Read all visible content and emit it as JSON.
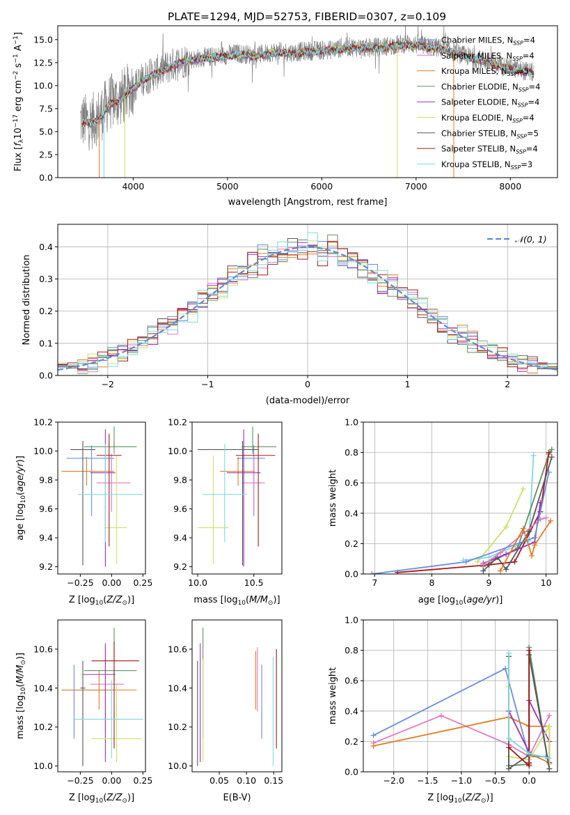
{
  "figure": {
    "title": "PLATE=1294, MJD=52753, FIBERID=0307, z=0.109"
  },
  "colors": {
    "ChabrierMILES": "#6a8ddb",
    "SalpeterMILES": "#e377c2",
    "KroupaMILES": "#e07b24",
    "ChabrierELODIE": "#5e8f5e",
    "SalpeterELODIE": "#9a32b8",
    "KroupaELODIE": "#cfe06a",
    "ChabrierSTELIB": "#555555",
    "SalpeterSTELIB": "#a31818",
    "KroupaSTELIB": "#7fd9dd",
    "normal_curve": "#5b8bd0",
    "grid": "#b0b0b0"
  },
  "chart_data": [
    {
      "id": "spectrum",
      "type": "line",
      "xlabel": "wavelength [Angstrom, rest frame]",
      "ylabel": "Flux [f_λ 10^-17 erg cm^-2 s^-1 A^-1]",
      "xlim": [
        3200,
        8500
      ],
      "ylim": [
        0,
        16.5
      ],
      "xticks": [
        4000,
        5000,
        6000,
        7000,
        8000
      ],
      "yticks": [
        0.0,
        2.5,
        5.0,
        7.5,
        10.0,
        12.5,
        15.0
      ],
      "grid": false,
      "legend_position": "right",
      "legend": [
        {
          "key": "ChabrierMILES",
          "name": "Chabrier MILES",
          "nssp": "4"
        },
        {
          "key": "SalpeterMILES",
          "name": "Salpeter MILES",
          "nssp": "4"
        },
        {
          "key": "KroupaMILES",
          "name": "Kroupa MILES",
          "nssp": "5"
        },
        {
          "key": "ChabrierELODIE",
          "name": "Chabrier ELODIE",
          "nssp": "4"
        },
        {
          "key": "SalpeterELODIE",
          "name": "Salpeter ELODIE",
          "nssp": "4"
        },
        {
          "key": "KroupaELODIE",
          "name": "Kroupa ELODIE",
          "nssp": "4"
        },
        {
          "key": "ChabrierSTELIB",
          "name": "Chabrier STELIB",
          "nssp": "5"
        },
        {
          "key": "SalpeterSTELIB",
          "name": "Salpeter STELIB",
          "nssp": "4"
        },
        {
          "key": "KroupaSTELIB",
          "name": "Kroupa STELIB",
          "nssp": "3"
        }
      ],
      "data_envelope": {
        "x": [
          3440,
          3550,
          3650,
          3750,
          3850,
          3950,
          4100,
          4300,
          4500,
          4700,
          4900,
          5100,
          5300,
          5500,
          5700,
          5900,
          6100,
          6300,
          6500,
          6700,
          6900,
          7100,
          7300,
          7500,
          7700,
          7900,
          8100,
          8250
        ],
        "y": [
          6.2,
          6.0,
          6.8,
          8.2,
          8.5,
          9.4,
          10.7,
          11.7,
          12.6,
          13.0,
          13.2,
          13.5,
          13.3,
          13.7,
          13.6,
          13.8,
          13.9,
          14.2,
          14.1,
          14.3,
          14.6,
          14.3,
          14.0,
          13.3,
          12.8,
          12.2,
          11.7,
          11.4
        ],
        "noise": 1.2
      },
      "model_envelope": {
        "x": [
          3440,
          3550,
          3650,
          3750,
          3850,
          3950,
          4100,
          4300,
          4500,
          4700,
          4900,
          5100,
          5300,
          5500,
          5700,
          5900,
          6100,
          6300,
          6500,
          6700,
          6900,
          7100,
          7300,
          7500,
          7700,
          7900,
          8100,
          8250
        ],
        "y": [
          6.0,
          5.9,
          6.5,
          8.0,
          8.3,
          9.2,
          10.6,
          11.6,
          12.5,
          12.9,
          13.1,
          13.4,
          13.2,
          13.6,
          13.5,
          13.7,
          13.8,
          14.1,
          14.0,
          14.2,
          14.5,
          14.2,
          13.9,
          13.2,
          12.7,
          12.1,
          11.6,
          11.3
        ]
      }
    },
    {
      "id": "residuals",
      "type": "histogram",
      "xlabel": "(data-model)/error",
      "ylabel": "Normed distribution",
      "xlim": [
        -2.5,
        2.5
      ],
      "ylim": [
        0,
        0.47
      ],
      "xticks": [
        -2,
        -1,
        0,
        1,
        2
      ],
      "yticks": [
        0.0,
        0.1,
        0.2,
        0.3,
        0.4
      ],
      "grid": true,
      "legend_position": "top-right",
      "curve_label": "𝒩(0, 1)",
      "bin_width": 0.1
    },
    {
      "id": "age_vs_Z",
      "type": "errorbar",
      "xlabel": "Z [log10(Z/Z⊙)]",
      "ylabel": "age  [log10(age/yr)]",
      "xlim": [
        -0.43,
        0.27
      ],
      "ylim": [
        9.15,
        10.2
      ],
      "xticks": [
        -0.25,
        0.0,
        0.25
      ],
      "yticks": [
        9.2,
        9.4,
        9.6,
        9.8,
        10.0,
        10.2
      ],
      "points": [
        {
          "key": "ChabrierMILES",
          "x": -0.16,
          "xerr": [
            0.2,
            0.18
          ],
          "y": 9.95,
          "yerr": [
            0.4,
            0.09
          ]
        },
        {
          "key": "SalpeterMILES",
          "x": 0.0,
          "xerr": [
            0.12,
            0.15
          ],
          "y": 9.78,
          "yerr": [
            0.2,
            0.2
          ]
        },
        {
          "key": "KroupaMILES",
          "x": -0.2,
          "xerr": [
            0.2,
            0.22
          ],
          "y": 9.86,
          "yerr": [
            0.1,
            0.1
          ]
        },
        {
          "key": "ChabrierELODIE",
          "x": 0.02,
          "xerr": [
            0.24,
            0.18
          ],
          "y": 10.03,
          "yerr": [
            0.05,
            0.14
          ]
        },
        {
          "key": "SalpeterELODIE",
          "x": -0.05,
          "xerr": [
            0.12,
            0.08
          ],
          "y": 9.85,
          "yerr": [
            0.65,
            0.3
          ]
        },
        {
          "key": "KroupaELODIE",
          "x": 0.04,
          "xerr": [
            0.1,
            0.08
          ],
          "y": 9.47,
          "yerr": [
            0.25,
            0.5
          ]
        },
        {
          "key": "ChabrierSTELIB",
          "x": -0.23,
          "xerr": [
            0.1,
            0.1
          ],
          "y": 10.01,
          "yerr": [
            0.8,
            0.06
          ]
        },
        {
          "key": "SalpeterSTELIB",
          "x": -0.02,
          "xerr": [
            0.1,
            0.1
          ],
          "y": 9.97,
          "yerr": [
            0.63,
            0.15
          ]
        },
        {
          "key": "KroupaSTELIB",
          "x": -0.05,
          "xerr": [
            0.22,
            0.3
          ],
          "y": 9.7,
          "yerr": [
            0.33,
            0.35
          ]
        }
      ]
    },
    {
      "id": "age_vs_mass",
      "type": "errorbar",
      "xlabel": "mass [log10(M/M⊙)]",
      "xlim": [
        9.95,
        10.75
      ],
      "ylim": [
        9.15,
        10.2
      ],
      "xticks": [
        10.0,
        10.5
      ],
      "yticks": [
        9.2,
        9.4,
        9.6,
        9.8,
        10.0,
        10.2
      ],
      "points": [
        {
          "key": "ChabrierMILES",
          "x": 10.5,
          "xerr": [
            0.15,
            0.1
          ],
          "y": 9.95,
          "yerr": [
            0.4,
            0.09
          ]
        },
        {
          "key": "SalpeterMILES",
          "x": 10.5,
          "xerr": [
            0.1,
            0.1
          ],
          "y": 9.78,
          "yerr": [
            0.2,
            0.2
          ]
        },
        {
          "key": "KroupaMILES",
          "x": 10.36,
          "xerr": [
            0.16,
            0.15
          ],
          "y": 9.86,
          "yerr": [
            0.1,
            0.1
          ]
        },
        {
          "key": "ChabrierELODIE",
          "x": 10.49,
          "xerr": [
            0.1,
            0.21
          ],
          "y": 10.03,
          "yerr": [
            0.05,
            0.14
          ]
        },
        {
          "key": "SalpeterELODIE",
          "x": 10.41,
          "xerr": [
            0.15,
            0.15
          ],
          "y": 9.85,
          "yerr": [
            0.65,
            0.3
          ]
        },
        {
          "key": "KroupaELODIE",
          "x": 10.14,
          "xerr": [
            0.14,
            0.14
          ],
          "y": 9.47,
          "yerr": [
            0.25,
            0.5
          ]
        },
        {
          "key": "ChabrierSTELIB",
          "x": 10.4,
          "xerr": [
            0.4,
            0.14
          ],
          "y": 10.01,
          "yerr": [
            0.8,
            0.06
          ]
        },
        {
          "key": "SalpeterSTELIB",
          "x": 10.54,
          "xerr": [
            0.2,
            0.15
          ],
          "y": 9.97,
          "yerr": [
            0.63,
            0.15
          ]
        },
        {
          "key": "KroupaSTELIB",
          "x": 10.24,
          "xerr": [
            0.2,
            0.2
          ],
          "y": 9.7,
          "yerr": [
            0.33,
            0.35
          ]
        }
      ]
    },
    {
      "id": "massweight_vs_age",
      "type": "line",
      "xlabel": "age  [log10(age/yr)]",
      "ylabel": "mass weight",
      "xlim": [
        6.8,
        10.2
      ],
      "ylim": [
        0,
        1.0
      ],
      "xticks": [
        7,
        8,
        9,
        10
      ],
      "yticks": [
        0.0,
        0.2,
        0.4,
        0.6,
        0.8,
        1.0
      ],
      "grid": true,
      "series": [
        {
          "key": "KroupaELODIE",
          "x": [
            8.8,
            9.3,
            9.6
          ],
          "y": [
            0.08,
            0.31,
            0.56
          ]
        },
        {
          "key": "KroupaSTELIB",
          "x": [
            8.55,
            9.0,
            9.7,
            9.78
          ],
          "y": [
            0.09,
            0.11,
            0.22,
            0.78
          ]
        },
        {
          "key": "ChabrierELODIE",
          "x": [
            8.9,
            9.5,
            10.05,
            10.1
          ],
          "y": [
            0.05,
            0.17,
            0.79,
            0.82
          ]
        },
        {
          "key": "SalpeterSTELIB",
          "x": [
            7.4,
            9.0,
            9.45,
            9.9,
            10.05
          ],
          "y": [
            0.01,
            0.06,
            0.08,
            0.41,
            0.8
          ]
        },
        {
          "key": "ChabrierSTELIB",
          "x": [
            8.9,
            9.15,
            9.3,
            9.7,
            10.1
          ],
          "y": [
            0.02,
            0.11,
            0.03,
            0.28,
            0.77
          ]
        },
        {
          "key": "SalpeterELODIE",
          "x": [
            8.9,
            9.3,
            9.8,
            9.9
          ],
          "y": [
            0.07,
            0.13,
            0.21,
            0.47
          ]
        },
        {
          "key": "SalpeterMILES",
          "x": [
            8.9,
            9.2,
            9.9,
            10.0
          ],
          "y": [
            0.06,
            0.14,
            0.36,
            0.37
          ]
        },
        {
          "key": "ChabrierMILES",
          "x": [
            6.95,
            8.6,
            9.8,
            10.05
          ],
          "y": [
            0.0,
            0.08,
            0.24,
            0.67
          ]
        },
        {
          "key": "KroupaMILES",
          "x": [
            9.2,
            9.6,
            9.75,
            9.8,
            10.08
          ],
          "y": [
            0.02,
            0.3,
            0.12,
            0.19,
            0.35
          ]
        }
      ]
    },
    {
      "id": "mass_vs_Z",
      "type": "errorbar",
      "xlabel": "Z [log10(Z/Z⊙)]",
      "ylabel": "mass [log10(M/M⊙)]",
      "xlim": [
        -0.43,
        0.27
      ],
      "ylim": [
        9.97,
        10.75
      ],
      "xticks": [
        -0.25,
        0.0,
        0.25
      ],
      "yticks": [
        10.0,
        10.2,
        10.4,
        10.6
      ],
      "points": [
        {
          "key": "ChabrierMILES",
          "x": -0.3,
          "xerr": [
            0.1,
            0.3
          ],
          "y": 10.39,
          "yerr": [
            0.25,
            0.13
          ]
        },
        {
          "key": "SalpeterMILES",
          "x": -0.05,
          "xerr": [
            0.12,
            0.15
          ],
          "y": 10.42,
          "yerr": [
            0.25,
            0.2
          ]
        },
        {
          "key": "KroupaMILES",
          "x": -0.1,
          "xerr": [
            0.3,
            0.3
          ],
          "y": 10.39,
          "yerr": [
            0.1,
            0.1
          ]
        },
        {
          "key": "ChabrierELODIE",
          "x": 0.02,
          "xerr": [
            0.24,
            0.18
          ],
          "y": 10.49,
          "yerr": [
            0.1,
            0.22
          ]
        },
        {
          "key": "SalpeterELODIE",
          "x": -0.05,
          "xerr": [
            0.18,
            0.08
          ],
          "y": 10.47,
          "yerr": [
            0.45,
            0.16
          ]
        },
        {
          "key": "KroupaELODIE",
          "x": 0.04,
          "xerr": [
            0.2,
            0.2
          ],
          "y": 10.14,
          "yerr": [
            0.12,
            0.28
          ]
        },
        {
          "key": "ChabrierSTELIB",
          "x": -0.23,
          "xerr": [
            0.02,
            0.02
          ],
          "y": 10.4,
          "yerr": [
            0.4,
            0.14
          ]
        },
        {
          "key": "SalpeterSTELIB",
          "x": 0.02,
          "xerr": [
            0.18,
            0.2
          ],
          "y": 10.54,
          "yerr": [
            0.45,
            0.1
          ]
        },
        {
          "key": "KroupaSTELIB",
          "x": 0.0,
          "xerr": [
            0.3,
            0.25
          ],
          "y": 10.24,
          "yerr": [
            0.2,
            0.2
          ]
        }
      ]
    },
    {
      "id": "mass_vs_EBV",
      "type": "errorbar",
      "xlabel": "E(B-V)",
      "xlim": [
        0.0,
        0.165
      ],
      "ylim": [
        9.97,
        10.75
      ],
      "xticks": [
        0.05,
        0.1,
        0.15
      ],
      "yticks": [
        10.0,
        10.2,
        10.4,
        10.6
      ],
      "points": [
        {
          "key": "ChabrierMILES",
          "x": 0.128,
          "y": 10.39,
          "yerr": [
            0.25,
            0.13
          ]
        },
        {
          "key": "SalpeterMILES",
          "x": 0.12,
          "y": 10.42,
          "yerr": [
            0.14,
            0.19
          ]
        },
        {
          "key": "KroupaMILES",
          "x": 0.117,
          "y": 10.39,
          "yerr": [
            0.1,
            0.2
          ]
        },
        {
          "key": "ChabrierELODIE",
          "x": 0.02,
          "y": 10.49,
          "yerr": [
            0.35,
            0.22
          ]
        },
        {
          "key": "SalpeterELODIE",
          "x": 0.015,
          "y": 10.47,
          "yerr": [
            0.45,
            0.16
          ]
        },
        {
          "key": "KroupaELODIE",
          "x": 0.02,
          "y": 10.25,
          "yerr": [
            0.23,
            0.3
          ]
        },
        {
          "key": "ChabrierSTELIB",
          "x": 0.01,
          "y": 10.4,
          "yerr": [
            0.4,
            0.14
          ]
        },
        {
          "key": "SalpeterSTELIB",
          "x": 0.155,
          "y": 10.35,
          "yerr": [
            0.26,
            0.25
          ]
        },
        {
          "key": "KroupaSTELIB",
          "x": 0.149,
          "y": 10.3,
          "yerr": [
            0.3,
            0.26
          ]
        }
      ]
    },
    {
      "id": "massweight_vs_Z",
      "type": "line",
      "xlabel": "Z [log10(Z/Z⊙)]",
      "ylabel": "mass weight",
      "xlim": [
        -2.45,
        0.42
      ],
      "ylim": [
        0,
        1.0
      ],
      "xticks": [
        -2.0,
        -1.5,
        -1.0,
        -0.5,
        0.0
      ],
      "yticks": [
        0.0,
        0.2,
        0.4,
        0.6,
        0.8,
        1.0
      ],
      "grid": true,
      "series": [
        {
          "key": "ChabrierMILES",
          "x": [
            -2.3,
            -0.35,
            0.0,
            0.25
          ],
          "y": [
            0.24,
            0.68,
            0.1,
            0.1
          ]
        },
        {
          "key": "SalpeterMILES",
          "x": [
            -2.3,
            -1.3,
            -0.3,
            0.0,
            0.3
          ],
          "y": [
            0.19,
            0.37,
            0.18,
            0.1,
            0.37
          ]
        },
        {
          "key": "KroupaMILES",
          "x": [
            -2.3,
            -0.3,
            0.0,
            0.3,
            0.3,
            0.0
          ],
          "y": [
            0.17,
            0.36,
            0.3,
            0.3,
            0.06,
            0.12
          ]
        },
        {
          "key": "ChabrierELODIE",
          "x": [
            -0.3,
            -0.3,
            0.0,
            0.0,
            0.3
          ],
          "y": [
            0.16,
            0.04,
            0.05,
            0.82,
            0.02
          ]
        },
        {
          "key": "SalpeterELODIE",
          "x": [
            -0.3,
            0.0,
            0.0,
            0.3,
            0.3
          ],
          "y": [
            0.4,
            0.13,
            0.47,
            0.2,
            0.06
          ]
        },
        {
          "key": "KroupaELODIE",
          "x": [
            -0.3,
            -0.3,
            0.0,
            0.3,
            0.3
          ],
          "y": [
            0.56,
            0.1,
            0.08,
            0.3,
            0.05
          ]
        },
        {
          "key": "ChabrierSTELIB",
          "x": [
            -0.3,
            -0.3,
            0.0,
            0.0,
            0.3
          ],
          "y": [
            0.76,
            0.02,
            0.11,
            0.77,
            0.02
          ]
        },
        {
          "key": "SalpeterSTELIB",
          "x": [
            -0.3,
            0.0,
            0.0,
            0.0
          ],
          "y": [
            0.16,
            0.04,
            0.8,
            0.06
          ]
        },
        {
          "key": "KroupaSTELIB",
          "x": [
            -0.3,
            -0.3,
            0.0,
            0.3
          ],
          "y": [
            0.78,
            0.22,
            0.12,
            0.09
          ]
        }
      ]
    }
  ]
}
